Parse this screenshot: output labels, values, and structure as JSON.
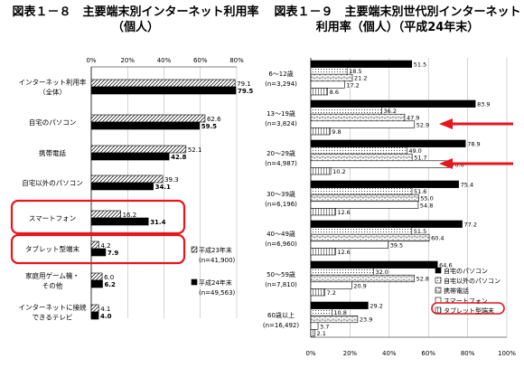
{
  "titles": {
    "left": "図表１－８　主要端末別インターネット利用率\n（個人）",
    "right": "図表１－９　主要端末別世代別インターネット\n利用率（個人）（平成24年末）"
  },
  "chart_data": [
    {
      "type": "bar",
      "orientation": "horizontal",
      "title": "図表１－８　主要端末別インターネット利用率（個人）",
      "xlim": [
        0,
        80
      ],
      "ticks": [
        "0%",
        "20%",
        "40%",
        "60%",
        "80%"
      ],
      "categories": [
        [
          "インターネット利用率",
          "（全体）"
        ],
        [
          "自宅のパソコン"
        ],
        [
          "携帯電話"
        ],
        [
          "自宅以外のパソコン"
        ],
        [
          "スマートフォン"
        ],
        [
          "タブレット型端末"
        ],
        [
          "家庭用ゲーム機・",
          "その他"
        ],
        [
          "インターネットに接続",
          "できるテレビ"
        ]
      ],
      "series": [
        {
          "name": "平成23年末",
          "sub": "(n=41,900)",
          "values": [
            79.1,
            62.6,
            52.1,
            39.3,
            16.2,
            4.2,
            6.0,
            4.1
          ],
          "labels": [
            "79.1",
            "62.6",
            "52.1",
            "39.3",
            "16.2",
            "4.2",
            "6.0",
            "4.1"
          ]
        },
        {
          "name": "平成24年末",
          "sub": "(n=49,563)",
          "values": [
            79.5,
            59.5,
            42.8,
            34.1,
            31.4,
            7.9,
            6.2,
            4.0
          ],
          "labels": [
            "79.5",
            "59.5",
            "42.8",
            "34.1",
            "31.4",
            "7.9",
            "6.2",
            "4.0"
          ]
        }
      ],
      "highlighted": [
        "スマートフォン",
        "タブレット型端末"
      ]
    },
    {
      "type": "bar",
      "orientation": "horizontal",
      "title": "図表１－９　主要端末別世代別インターネット利用率（個人）（平成24年末）",
      "xlim": [
        0,
        100
      ],
      "ticks": [
        "0%",
        "20%",
        "40%",
        "60%",
        "80%",
        "100%"
      ],
      "categories": [
        [
          "6～12歳",
          "(n=3,294)"
        ],
        [
          "13～19歳",
          "(n=3,824)"
        ],
        [
          "20～29歳",
          "(n=4,987)"
        ],
        [
          "30～39歳",
          "(n=6,196)"
        ],
        [
          "40～49歳",
          "(n=6,960)"
        ],
        [
          "50～59歳",
          "(n=7,810)"
        ],
        [
          "60歳以上",
          "(n=16,492)"
        ]
      ],
      "series": [
        {
          "name": "自宅のパソコン",
          "values": [
            51.5,
            83.9,
            78.9,
            75.4,
            77.2,
            64.6,
            29.2
          ],
          "labels": [
            "51.5",
            "83.9",
            "78.9",
            "75.4",
            "77.2",
            "64.6",
            "29.2"
          ]
        },
        {
          "name": "自宅以外のパソコン",
          "values": [
            18.5,
            36.2,
            49.0,
            51.6,
            51.5,
            32.0,
            10.8
          ],
          "labels": [
            "18.5",
            "36.2",
            "49.0",
            "51.6",
            "51.5",
            "32.0",
            "10.8"
          ]
        },
        {
          "name": "携帯電話",
          "values": [
            21.2,
            47.9,
            51.7,
            55.0,
            60.4,
            52.8,
            23.9
          ],
          "labels": [
            "21.2",
            "47.9",
            "51.7",
            "55.0",
            "60.4",
            "52.8",
            "23.9"
          ]
        },
        {
          "name": "スマートフォン",
          "values": [
            17.2,
            52.9,
            70.6,
            54.8,
            39.5,
            20.9,
            3.7
          ],
          "labels": [
            "17.2",
            "52.9",
            "70.6",
            "54.8",
            "39.5",
            "20.9",
            "3.7"
          ]
        },
        {
          "name": "タブレット型端末",
          "values": [
            8.6,
            9.8,
            10.2,
            12.6,
            12.6,
            7.2,
            2.1
          ],
          "labels": [
            "8.6",
            "9.8",
            "10.2",
            "12.6",
            "12.6",
            "7.2",
            "2.1"
          ]
        }
      ],
      "highlighted_series": "スマートフォン",
      "arrows_at": [
        "13～19歳",
        "20～29歳"
      ]
    }
  ]
}
